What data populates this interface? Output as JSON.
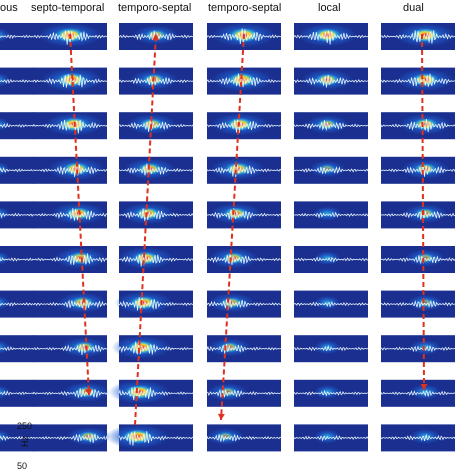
{
  "columns": [
    {
      "title": "ous",
      "arrow": "none"
    },
    {
      "title": "septo-temporal",
      "arrow": "down"
    },
    {
      "title": "temporo-septal",
      "arrow": "up"
    },
    {
      "title": "temporo-septal",
      "arrow": "down"
    },
    {
      "title": "local",
      "arrow": "none"
    },
    {
      "title": "dual",
      "arrow": "down"
    }
  ],
  "row_count": 10,
  "axis": {
    "top_value": "250",
    "bottom_value": "50",
    "unit": "Hz"
  },
  "colors": {
    "background": "#ffffff",
    "panel_base": "#1a2f8f",
    "trace": "#e8f6ff",
    "arrow": "#e0301e"
  },
  "colormap": [
    "#1a2f8f",
    "#1f5fd0",
    "#30c5f0",
    "#f2ea3a",
    "#ff8a1f",
    "#d8141c"
  ]
}
